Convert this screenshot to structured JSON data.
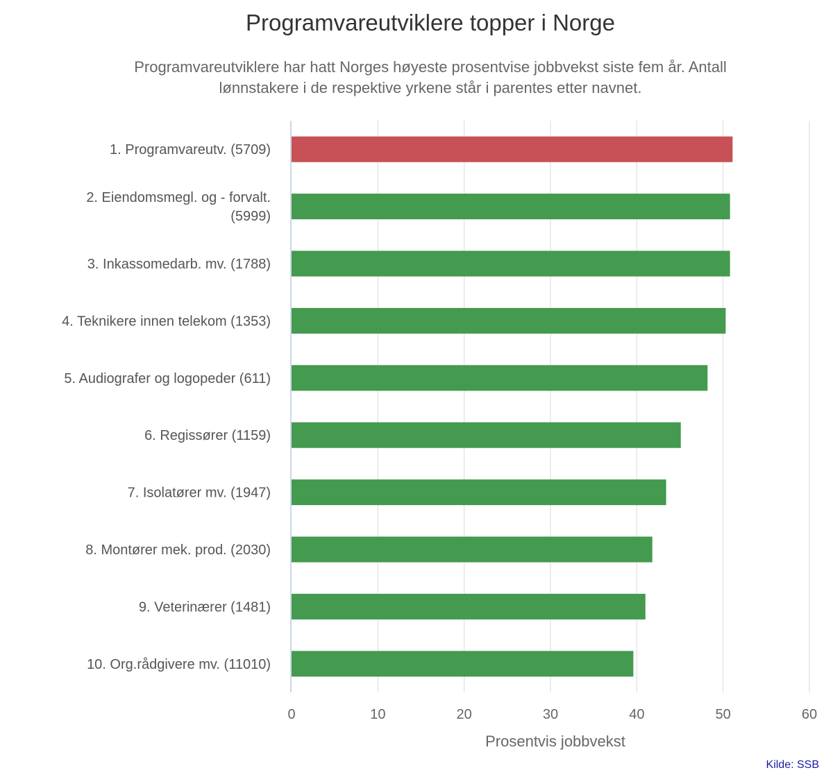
{
  "title": "Programvareutviklere topper i Norge",
  "subtitle": "Programvareutviklere har hatt Norges høyeste prosentvise jobbvekst siste fem år. Antall lønnstakere i de respektive yrkene står i parentes etter navnet.",
  "source": "Kilde: SSB",
  "chart_data": {
    "type": "bar",
    "orientation": "horizontal",
    "categories": [
      [
        "1. Programvareutv. (5709)"
      ],
      [
        "2. Eiendomsmegl. og - forvalt.",
        "(5999)"
      ],
      [
        "3. Inkassomedarb. mv. (1788)"
      ],
      [
        "4. Teknikere innen telekom (1353)"
      ],
      [
        "5. Audiografer og logopeder (611)"
      ],
      [
        "6. Regissører (1159)"
      ],
      [
        "7. Isolatører mv. (1947)"
      ],
      [
        "8. Montører mek. prod. (2030)"
      ],
      [
        "9. Veterinærer (1481)"
      ],
      [
        "10. Org.rådgivere mv. (11010)"
      ]
    ],
    "values": [
      51.1,
      50.8,
      50.8,
      50.3,
      48.2,
      45.1,
      43.4,
      41.8,
      41.0,
      39.6
    ],
    "colors": [
      "#c75156",
      "#449a4f",
      "#449a4f",
      "#449a4f",
      "#449a4f",
      "#449a4f",
      "#449a4f",
      "#449a4f",
      "#449a4f",
      "#449a4f"
    ],
    "xlabel": "Prosentvis jobbvekst",
    "xlim": [
      0,
      60
    ],
    "xticks": [
      "0",
      "10",
      "20",
      "30",
      "40",
      "50",
      "60"
    ],
    "grid": true
  }
}
